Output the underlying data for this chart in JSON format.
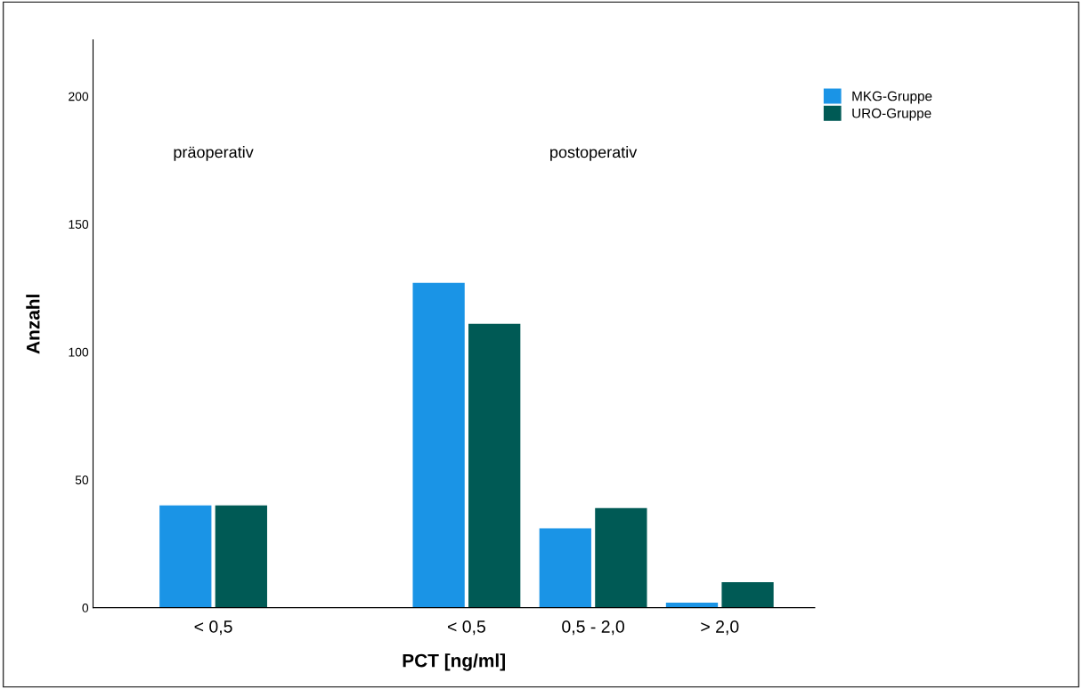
{
  "chart_data": {
    "type": "bar",
    "xlabel": "PCT [ng/ml]",
    "ylabel": "Anzahl",
    "categories": [
      "< 0,5",
      null,
      "< 0,5",
      "0,5 - 2,0",
      "> 2,0"
    ],
    "series": [
      {
        "name": "MKG-Gruppe",
        "color": "#1a94e6",
        "values": [
          40,
          null,
          127,
          31,
          2
        ]
      },
      {
        "name": "URO-Gruppe",
        "color": "#005a55",
        "values": [
          40,
          null,
          111,
          39,
          10
        ]
      }
    ],
    "annotations": [
      "präoperativ",
      "postoperativ"
    ],
    "ylim": [
      0,
      222
    ],
    "yticks": [
      0,
      50,
      100,
      150,
      200
    ],
    "grid": false,
    "legend": "top right"
  }
}
